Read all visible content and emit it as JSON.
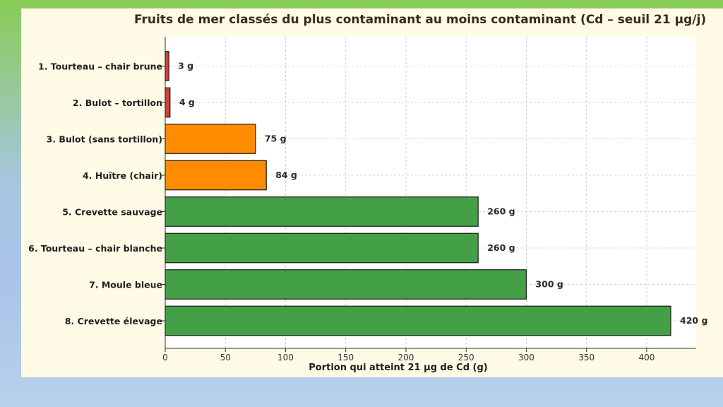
{
  "chart_data": {
    "type": "bar",
    "orientation": "horizontal",
    "title": "Fruits de mer classés du plus contaminant au moins contaminant (Cd – seuil 21 µg/j)",
    "xlabel": "Portion qui atteint 21 µg de Cd (g)",
    "ylabel": "",
    "xlim": [
      0,
      440
    ],
    "xticks": [
      "0",
      "50",
      "100",
      "150",
      "200",
      "250",
      "300",
      "350",
      "400"
    ],
    "grid": true,
    "categories": [
      "1. Tourteau – chair brune",
      "2. Bulot – tortillon",
      "3. Bulot (sans tortillon)",
      "4. Huître (chair)",
      "5. Crevette sauvage",
      "6. Tourteau – chair blanche",
      "7. Moule bleue",
      "8. Crevette élevage"
    ],
    "values": [
      3,
      4,
      75,
      84,
      260,
      260,
      300,
      420
    ],
    "value_labels": [
      "3 g",
      "4 g",
      "75 g",
      "84 g",
      "260 g",
      "260 g",
      "300 g",
      "420 g"
    ],
    "bar_colors": [
      "#d63c3c",
      "#d63c3c",
      "#ff8c00",
      "#ff8c00",
      "#43a047",
      "#43a047",
      "#43a047",
      "#43a047"
    ]
  }
}
